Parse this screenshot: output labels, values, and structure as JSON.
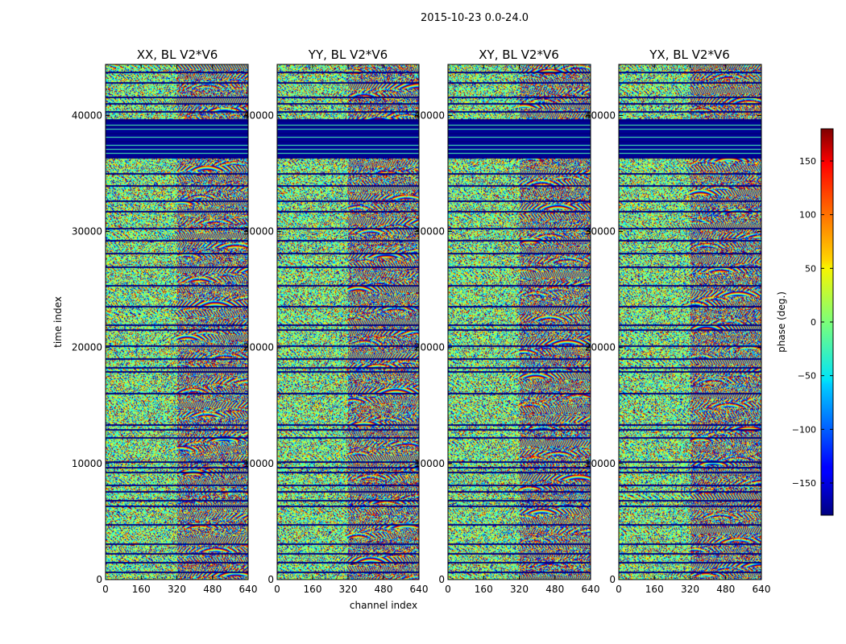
{
  "chart_data": {
    "type": "heatmap",
    "suptitle": "2015-10-23 0.0-24.0",
    "xlabel": "channel index",
    "ylabel": "time index",
    "xlim": [
      0,
      640
    ],
    "ylim": [
      0,
      44400
    ],
    "xticks": [
      0,
      160,
      320,
      480,
      640
    ],
    "yticks": [
      0,
      10000,
      20000,
      30000,
      40000
    ],
    "panels": [
      {
        "title": "XX, BL V2*V6",
        "key": "xx"
      },
      {
        "title": "YY, BL V2*V6",
        "key": "yy"
      },
      {
        "title": "XY, BL V2*V6",
        "key": "xy"
      },
      {
        "title": "YX, BL V2*V6",
        "key": "yx"
      }
    ],
    "colorbar": {
      "label": "phase (deg.)",
      "min": -180,
      "max": 180,
      "ticks": [
        150,
        100,
        50,
        0,
        -50,
        -100,
        -150
      ],
      "tick_labels": [
        "150",
        "100",
        "50",
        "0",
        "−50",
        "−100",
        "−150"
      ],
      "colormap": "jet"
    },
    "gap_rows": [
      700,
      1500,
      2300,
      3100,
      4800,
      6400,
      6900,
      7600,
      8200,
      9300,
      9700,
      10200,
      12300,
      13000,
      13400,
      16100,
      18000,
      18300,
      19100,
      20200,
      21600,
      22000,
      23600,
      25400,
      27000,
      28200,
      29300,
      30300,
      31800,
      32700,
      34000,
      35000,
      36400,
      37800,
      38500,
      39100,
      39600,
      40400,
      41100,
      41600,
      42900,
      43800
    ],
    "solid_band": [
      36300,
      39700
    ]
  }
}
